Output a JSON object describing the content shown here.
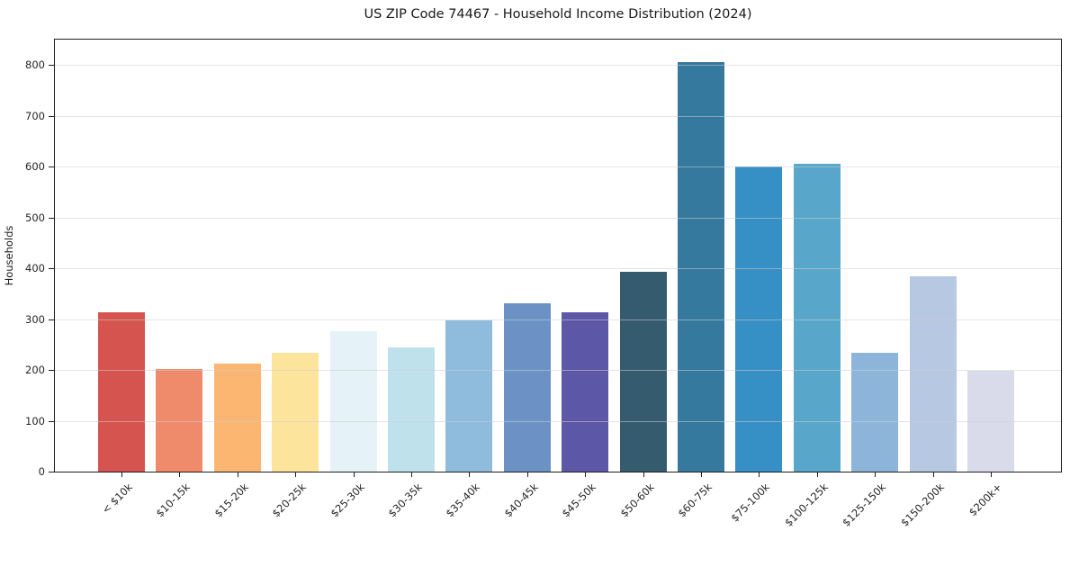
{
  "chart_data": {
    "type": "bar",
    "title": "US ZIP Code 74467 - Household Income Distribution (2024)",
    "xlabel": "",
    "ylabel": "Households",
    "categories": [
      "< $10k",
      "$10-15k",
      "$15-20k",
      "$20-25k",
      "$25-30k",
      "$30-35k",
      "$35-40k",
      "$40-45k",
      "$45-50k",
      "$50-60k",
      "$60-75k",
      "$75-100k",
      "$100-125k",
      "$125-150k",
      "$150-200k",
      "$200k+"
    ],
    "values": [
      313,
      202,
      212,
      233,
      276,
      244,
      297,
      331,
      313,
      393,
      806,
      600,
      605,
      233,
      385,
      199
    ],
    "bar_colors": [
      "#d5544f",
      "#ef8a6b",
      "#fbb671",
      "#fde49c",
      "#e5f2f7",
      "#bfe1ec",
      "#8fbbdc",
      "#6c92c5",
      "#5d57a7",
      "#355c6e",
      "#36799f",
      "#368fc5",
      "#58a7ca",
      "#8db4d9",
      "#b6c8e2",
      "#d9dbeb"
    ],
    "ylim": [
      0,
      850
    ],
    "yticks": [
      0,
      100,
      200,
      300,
      400,
      500,
      600,
      700,
      800
    ],
    "grid": "horizontal",
    "legend": "none",
    "background_color": "#ffffff",
    "spine_color": "#1f1f1f"
  }
}
